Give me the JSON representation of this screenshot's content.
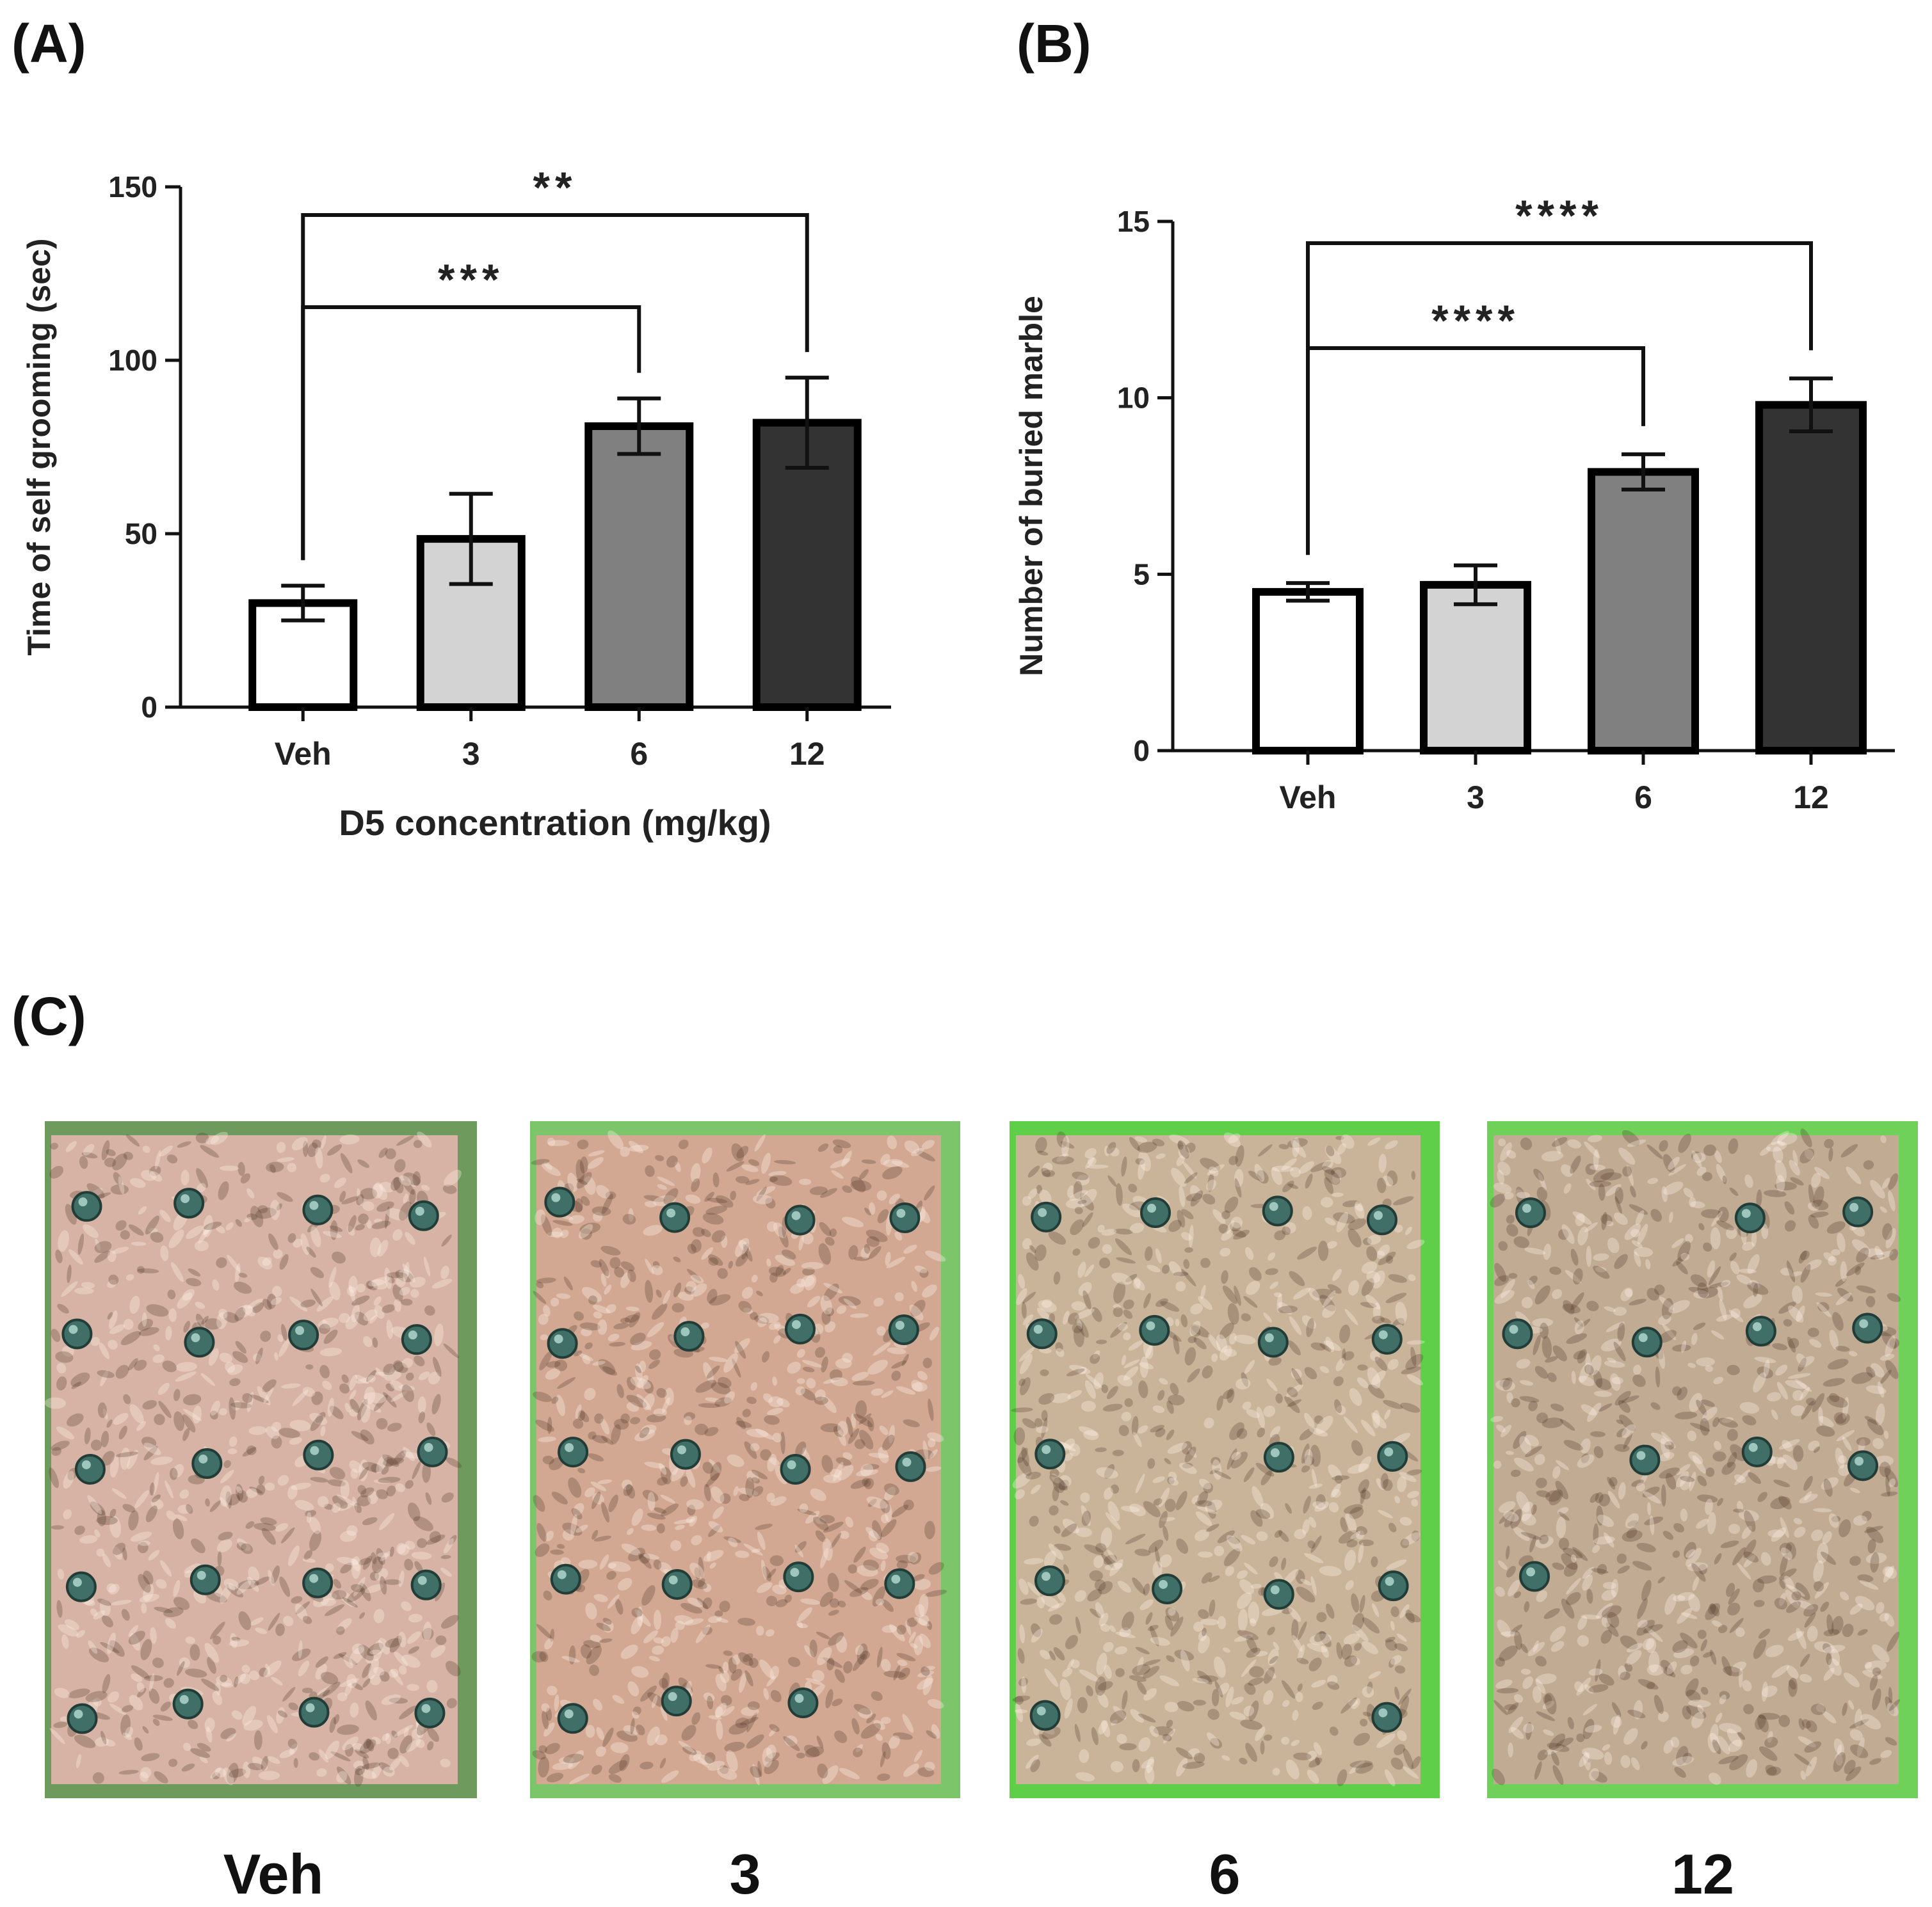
{
  "panels": {
    "a": "(A)",
    "b": "(B)",
    "c": "(C)"
  },
  "chart_data": [
    {
      "id": "A",
      "type": "bar",
      "categories": [
        "Veh",
        "3",
        "6",
        "12"
      ],
      "values": [
        30,
        48.5,
        81,
        82
      ],
      "errors": [
        5,
        13,
        8,
        13
      ],
      "bar_colors": [
        "#ffffff",
        "#d3d3d3",
        "#808080",
        "#333333"
      ],
      "ylabel": "Time of self grooming (sec)",
      "xlabel": "D5 concentration (mg/kg)",
      "ylim": [
        0,
        150
      ],
      "yticks": [
        0,
        50,
        100,
        150
      ],
      "grid": false,
      "significance": [
        {
          "from": "Veh",
          "to": "12",
          "label": "**"
        },
        {
          "from": "Veh",
          "to": "6",
          "label": "***"
        }
      ]
    },
    {
      "id": "B",
      "type": "bar",
      "categories": [
        "Veh",
        "3",
        "6",
        "12"
      ],
      "values": [
        4.5,
        4.7,
        7.9,
        9.8
      ],
      "errors": [
        0.25,
        0.55,
        0.5,
        0.75
      ],
      "bar_colors": [
        "#ffffff",
        "#d3d3d3",
        "#808080",
        "#333333"
      ],
      "ylabel": "Number of buried marble",
      "xlabel": "",
      "ylim": [
        0,
        15
      ],
      "yticks": [
        0,
        5,
        10,
        15
      ],
      "grid": false,
      "significance": [
        {
          "from": "Veh",
          "to": "12",
          "label": "****"
        },
        {
          "from": "Veh",
          "to": "6",
          "label": "****"
        }
      ]
    }
  ],
  "photos": [
    {
      "label": "Veh",
      "visible_marbles": 20,
      "bedding_color": "#d6b3a4",
      "frame_color": "#6f9a5e"
    },
    {
      "label": "3",
      "visible_marbles": 19,
      "bedding_color": "#d2a892",
      "frame_color": "#7dc56a"
    },
    {
      "label": "6",
      "visible_marbles": 17,
      "bedding_color": "#c9b49a",
      "frame_color": "#5fcf4a"
    },
    {
      "label": "12",
      "visible_marbles": 11,
      "bedding_color": "#c1ab93",
      "frame_color": "#6fd05a"
    }
  ]
}
